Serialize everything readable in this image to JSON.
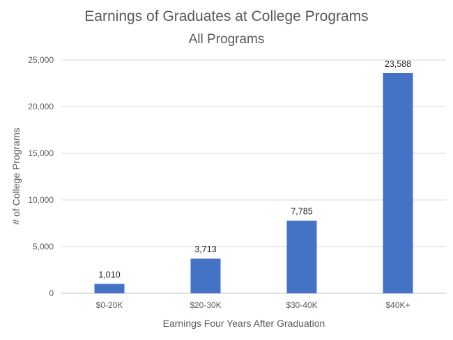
{
  "chart_data": {
    "type": "bar",
    "title": "Earnings of Graduates at College Programs",
    "subtitle": "All Programs",
    "xlabel": "Earnings Four Years After Graduation",
    "ylabel": "# of College Programs",
    "categories": [
      "$0-20K",
      "$20-30K",
      "$30-40K",
      "$40K+"
    ],
    "values": [
      1010,
      3713,
      7785,
      23588
    ],
    "data_labels": [
      "1,010",
      "3,713",
      "7,785",
      "23,588"
    ],
    "ylim": [
      0,
      25000
    ],
    "yticks": [
      0,
      5000,
      10000,
      15000,
      20000,
      25000
    ],
    "ytick_labels": [
      "0",
      "5,000",
      "10,000",
      "15,000",
      "20,000",
      "25,000"
    ],
    "grid": true,
    "legend": "none",
    "bar_color": "#4472c4"
  }
}
